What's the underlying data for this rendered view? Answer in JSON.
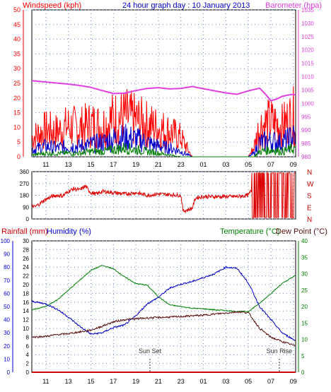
{
  "header": {
    "windspeed_label": "Windspeed (kph)",
    "title": "24 hour graph day : 10 January 2013",
    "barometer_label": "Barometer (hpa)"
  },
  "bottom_header": {
    "rainfall_label": "Rainfall (mm)",
    "humidity_label": "Humidity (%)",
    "temperature_label": "Temperature (°C)",
    "dewpoint_label": "Dew Point (°C)"
  },
  "annotations": {
    "sunset": "Sun Set",
    "sunrise": "Sun Rise"
  },
  "colors": {
    "wind_gust": "#ff0000",
    "wind_avg": "#0000cc",
    "wind_low": "#008000",
    "barometer": "#e040e0",
    "direction": "#dd0000",
    "humidity": "#0000cc",
    "temperature": "#008000",
    "dewpoint": "#5a1010",
    "rainfall": "#cc0000",
    "left_axis": "#ff0000",
    "right_axis": "#e040e0",
    "blue_axis": "#0000cc",
    "green_axis": "#008000"
  },
  "chart_data": [
    {
      "type": "line",
      "name": "wind-barometer",
      "x_ticks": [
        "11",
        "13",
        "15",
        "17",
        "19",
        "21",
        "23",
        "01",
        "03",
        "05",
        "07",
        "09"
      ],
      "y_left_ticks": [
        0,
        5,
        10,
        15,
        20,
        25,
        30,
        35,
        40,
        45,
        50
      ],
      "y_right_ticks": [
        980,
        985,
        990,
        995,
        1000,
        1005,
        1010,
        1015,
        1020,
        1025,
        1030,
        1035
      ],
      "ylim_left": [
        0,
        50
      ],
      "ylim_right": [
        980,
        1035
      ],
      "hours_range": [
        9.75,
        33.2
      ],
      "grid": true,
      "barometer": {
        "x": [
          9.75,
          11,
          12,
          13,
          14,
          15,
          16,
          17,
          18,
          19,
          20,
          21,
          22,
          23,
          24,
          25,
          26,
          27,
          28,
          29,
          30,
          30.5,
          31,
          31.5,
          32,
          32.5,
          33,
          33.2
        ],
        "y": [
          1008.5,
          1008,
          1007.6,
          1007.2,
          1006.7,
          1006,
          1004.8,
          1003.7,
          1003.8,
          1004.8,
          1005.6,
          1005.9,
          1005.4,
          1005.6,
          1006.3,
          1005.5,
          1004.7,
          1003.9,
          1003.4,
          1004.7,
          1005.7,
          1003.5,
          1001,
          1001.6,
          1002.6,
          1003.1,
          1003.4,
          1003.1
        ]
      },
      "wind_gust_envelope": {
        "x": [
          9.75,
          11,
          12,
          13,
          14,
          15,
          16,
          17,
          18,
          19,
          20,
          21,
          22,
          23,
          24,
          25,
          26,
          27,
          28,
          29,
          29.5,
          30,
          31,
          32,
          33.2
        ],
        "y": [
          10,
          14,
          13,
          16,
          15,
          17,
          16,
          20,
          21,
          19,
          17,
          15,
          13,
          10,
          0,
          0,
          0,
          0,
          0,
          0,
          5,
          16,
          18,
          16,
          22
        ]
      },
      "wind_avg_envelope": {
        "x": [
          9.75,
          11,
          12,
          13,
          14,
          15,
          16,
          17,
          18,
          19,
          20,
          21,
          22,
          23,
          24,
          25,
          26,
          27,
          28,
          29,
          29.5,
          30,
          31,
          32,
          33.2
        ],
        "y": [
          4,
          6,
          5,
          6,
          6,
          7,
          8,
          10,
          11,
          10,
          8,
          6,
          5,
          3,
          0,
          0,
          0,
          0,
          0,
          0,
          2,
          8,
          9,
          8,
          12
        ]
      },
      "wind_low_envelope": {
        "x": [
          9.75,
          11,
          12,
          13,
          14,
          15,
          16,
          17,
          18,
          19,
          20,
          21,
          22,
          23,
          24,
          25,
          26,
          27,
          28,
          29,
          29.5,
          30,
          31,
          32,
          33.2
        ],
        "y": [
          1,
          2,
          2,
          2,
          2,
          3,
          3,
          4,
          5,
          4,
          3,
          2,
          1,
          0,
          0,
          0,
          0,
          0,
          0,
          0,
          0,
          3,
          4,
          3,
          5
        ]
      }
    },
    {
      "type": "line",
      "name": "wind-direction",
      "x_ticks": [
        "11",
        "13",
        "15",
        "17",
        "19",
        "21",
        "23",
        "01",
        "03",
        "05",
        "07",
        "09"
      ],
      "y_ticks": [
        0,
        45,
        90,
        135,
        180,
        225,
        270,
        315,
        360
      ],
      "ylim": [
        0,
        360
      ],
      "compass_labels": [
        "N",
        "W",
        "S",
        "E",
        "N"
      ],
      "grid": true,
      "direction": {
        "x": [
          9.75,
          10,
          10.5,
          11,
          11.5,
          12,
          12.5,
          13,
          13.5,
          14,
          14.5,
          15,
          15.5,
          16,
          17,
          18,
          19,
          20,
          21,
          22,
          23,
          23.2,
          24,
          24.3,
          25,
          26,
          27,
          28,
          29,
          29.5,
          30,
          30.5,
          31,
          31.5,
          32,
          33.2
        ],
        "y": [
          100,
          90,
          120,
          150,
          170,
          180,
          175,
          210,
          230,
          220,
          250,
          200,
          190,
          210,
          200,
          190,
          200,
          180,
          190,
          185,
          180,
          60,
          80,
          160,
          170,
          170,
          170,
          170,
          180,
          250,
          20,
          350,
          10,
          350,
          20,
          330
        ]
      }
    },
    {
      "type": "line",
      "name": "temp-humidity-rain",
      "x_ticks": [
        "11",
        "13",
        "15",
        "17",
        "19",
        "21",
        "23",
        "01",
        "03",
        "05",
        "07",
        "09"
      ],
      "rain_ticks": [
        0,
        2,
        4,
        6,
        8,
        10,
        12,
        14,
        16,
        18,
        20,
        22,
        24,
        26,
        28,
        30
      ],
      "humidity_ticks": [
        0,
        10,
        20,
        30,
        40,
        50,
        60,
        70,
        80,
        90,
        100
      ],
      "temp_ticks": [
        0,
        5,
        10,
        15,
        20,
        25,
        30,
        35,
        40
      ],
      "ylim_rain": [
        0,
        30
      ],
      "ylim_humidity": [
        0,
        100
      ],
      "ylim_temp": [
        0,
        40
      ],
      "grid": true,
      "temperature": {
        "x": [
          9.75,
          11,
          12,
          13,
          14,
          15,
          16,
          17,
          18,
          19,
          20,
          21,
          22,
          23,
          24,
          25,
          26,
          27,
          28,
          29,
          30,
          31,
          32,
          33.2
        ],
        "y": [
          19,
          20,
          22,
          25,
          28,
          31,
          32.5,
          31.5,
          29,
          27,
          26.5,
          23,
          20.5,
          20,
          19.5,
          19.3,
          19,
          18.8,
          18.5,
          18.5,
          21,
          24,
          27,
          29.5
        ]
      },
      "humidity": {
        "x": [
          9.75,
          11,
          12,
          13,
          14,
          15,
          16,
          17,
          18,
          19,
          20,
          21,
          22,
          23,
          24,
          25,
          26,
          27,
          28,
          29,
          30,
          31,
          32,
          33.2
        ],
        "y": [
          54,
          52,
          48,
          42,
          35,
          29,
          30,
          34,
          36,
          43,
          52,
          57,
          64,
          67,
          69,
          72,
          75,
          80,
          79,
          68,
          50,
          40,
          30,
          24
        ]
      },
      "dewpoint": {
        "x": [
          9.75,
          11,
          12,
          13,
          14,
          15,
          16,
          17,
          18,
          19,
          20,
          21,
          22,
          23,
          24,
          25,
          26,
          27,
          28,
          29,
          30,
          31,
          32,
          33.2
        ],
        "y": [
          8,
          8.2,
          8.6,
          8.8,
          9.2,
          9.6,
          10.5,
          11.5,
          12,
          12.2,
          12.4,
          12.5,
          12.6,
          12.7,
          12.9,
          13,
          13.3,
          13.5,
          13.8,
          13.6,
          10,
          8,
          7,
          6
        ]
      },
      "rainfall": {
        "x": [
          9.75,
          33.2
        ],
        "y": [
          0,
          0
        ]
      },
      "sunset_hour": 20.25,
      "sunrise_hour": 31.75
    }
  ]
}
